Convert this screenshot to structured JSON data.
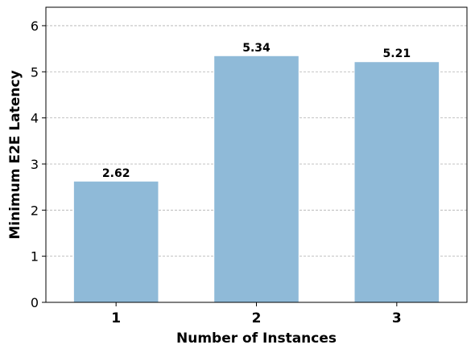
{
  "chart_data": {
    "type": "bar",
    "categories": [
      "1",
      "2",
      "3"
    ],
    "values": [
      2.62,
      5.34,
      5.21
    ],
    "data_labels": [
      "2.62",
      "5.34",
      "5.21"
    ],
    "xlabel": "Number of Instances",
    "ylabel": "Minimum E2E Latency",
    "ylim": [
      0,
      6.4
    ],
    "yticks": [
      0,
      1,
      2,
      3,
      4,
      5,
      6
    ],
    "grid": "y-dashed",
    "bar_color": "#8fbad8"
  }
}
